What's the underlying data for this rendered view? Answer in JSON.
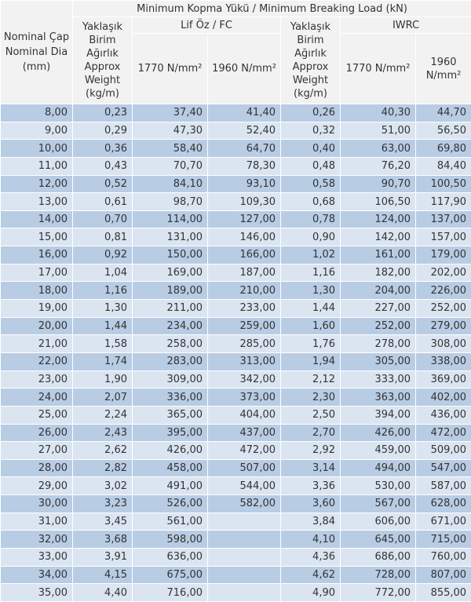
{
  "header": {
    "nominal": "Nominal Çap\nNominal Dia\n(mm)",
    "min_load": "Minimum Kopma Yükü / Minimum Breaking Load (kN)",
    "fc_group": "Lif Öz / FC",
    "iwrc_group": "IWRC",
    "weight_fc": "Yaklaşık\nBirim Ağırlık\nApprox\nWeight\n(kg/m)",
    "weight_iwrc": "Yaklaşık\nBirim Ağırlık\nApprox\nWeight\n(kg/m)",
    "fc_1770": "1770 N/mm²",
    "fc_1960": "1960 N/mm²",
    "iwrc_1770": "1770 N/mm²",
    "iwrc_1960": "1960\nN/mm²"
  },
  "rows": [
    [
      "8,00",
      "0,23",
      "37,40",
      "41,40",
      "0,26",
      "40,30",
      "44,70"
    ],
    [
      "9,00",
      "0,29",
      "47,30",
      "52,40",
      "0,32",
      "51,00",
      "56,50"
    ],
    [
      "10,00",
      "0,36",
      "58,40",
      "64,70",
      "0,40",
      "63,00",
      "69,80"
    ],
    [
      "11,00",
      "0,43",
      "70,70",
      "78,30",
      "0,48",
      "76,20",
      "84,40"
    ],
    [
      "12,00",
      "0,52",
      "84,10",
      "93,10",
      "0,58",
      "90,70",
      "100,50"
    ],
    [
      "13,00",
      "0,61",
      "98,70",
      "109,30",
      "0,68",
      "106,50",
      "117,90"
    ],
    [
      "14,00",
      "0,70",
      "114,00",
      "127,00",
      "0,78",
      "124,00",
      "137,00"
    ],
    [
      "15,00",
      "0,81",
      "131,00",
      "146,00",
      "0,90",
      "142,00",
      "157,00"
    ],
    [
      "16,00",
      "0,92",
      "150,00",
      "166,00",
      "1,02",
      "161,00",
      "179,00"
    ],
    [
      "17,00",
      "1,04",
      "169,00",
      "187,00",
      "1,16",
      "182,00",
      "202,00"
    ],
    [
      "18,00",
      "1,16",
      "189,00",
      "210,00",
      "1,30",
      "204,00",
      "226,00"
    ],
    [
      "19,00",
      "1,30",
      "211,00",
      "233,00",
      "1,44",
      "227,00",
      "252,00"
    ],
    [
      "20,00",
      "1,44",
      "234,00",
      "259,00",
      "1,60",
      "252,00",
      "279,00"
    ],
    [
      "21,00",
      "1,58",
      "258,00",
      "285,00",
      "1,76",
      "278,00",
      "308,00"
    ],
    [
      "22,00",
      "1,74",
      "283,00",
      "313,00",
      "1,94",
      "305,00",
      "338,00"
    ],
    [
      "23,00",
      "1,90",
      "309,00",
      "342,00",
      "2,12",
      "333,00",
      "369,00"
    ],
    [
      "24,00",
      "2,07",
      "336,00",
      "373,00",
      "2,30",
      "363,00",
      "402,00"
    ],
    [
      "25,00",
      "2,24",
      "365,00",
      "404,00",
      "2,50",
      "394,00",
      "436,00"
    ],
    [
      "26,00",
      "2,43",
      "395,00",
      "437,00",
      "2,70",
      "426,00",
      "472,00"
    ],
    [
      "27,00",
      "2,62",
      "426,00",
      "472,00",
      "2,92",
      "459,00",
      "509,00"
    ],
    [
      "28,00",
      "2,82",
      "458,00",
      "507,00",
      "3,14",
      "494,00",
      "547,00"
    ],
    [
      "29,00",
      "3,02",
      "491,00",
      "544,00",
      "3,36",
      "530,00",
      "587,00"
    ],
    [
      "30,00",
      "3,23",
      "526,00",
      "582,00",
      "3,60",
      "567,00",
      "628,00"
    ],
    [
      "31,00",
      "3,45",
      "561,00",
      "",
      "3,84",
      "606,00",
      "671,00"
    ],
    [
      "32,00",
      "3,68",
      "598,00",
      "",
      "4,10",
      "645,00",
      "715,00"
    ],
    [
      "33,00",
      "3,91",
      "636,00",
      "",
      "4,36",
      "686,00",
      "760,00"
    ],
    [
      "34,00",
      "4,15",
      "675,00",
      "",
      "4,62",
      "728,00",
      "807,00"
    ],
    [
      "35,00",
      "4,40",
      "716,00",
      "",
      "4,90",
      "772,00",
      "855,00"
    ]
  ]
}
